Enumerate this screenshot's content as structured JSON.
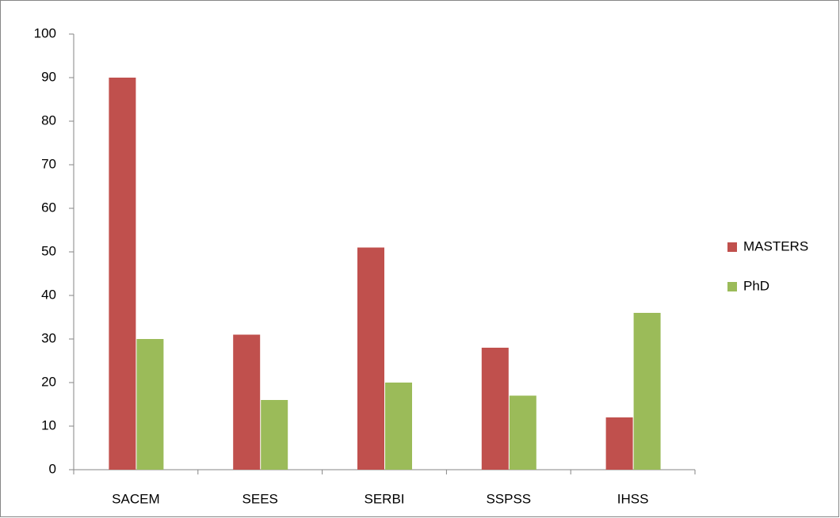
{
  "chart_data": {
    "type": "bar",
    "categories": [
      "SACEM",
      "SEES",
      "SERBI",
      "SSPSS",
      "IHSS"
    ],
    "series": [
      {
        "name": "MASTERS",
        "color": "#c0504d",
        "values": [
          90,
          31,
          51,
          28,
          12
        ]
      },
      {
        "name": "PhD",
        "color": "#9bbb59",
        "values": [
          30,
          16,
          20,
          17,
          36
        ]
      }
    ],
    "ylim": [
      0,
      100
    ],
    "yticks": [
      0,
      10,
      20,
      30,
      40,
      50,
      60,
      70,
      80,
      90,
      100
    ],
    "grid": false,
    "legend": "right"
  }
}
